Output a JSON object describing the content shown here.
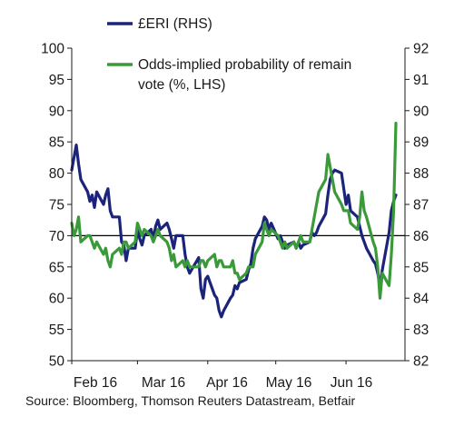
{
  "chart_data": {
    "type": "line",
    "x_ticks": [
      "Feb 16",
      "Mar 16",
      "Apr 16",
      "May 16",
      "Jun 16"
    ],
    "y_left": {
      "min": 50,
      "max": 100,
      "ticks": [
        "50",
        "55",
        "60",
        "65",
        "70",
        "75",
        "80",
        "85",
        "90",
        "95",
        "100"
      ]
    },
    "y_right": {
      "min": 82,
      "max": 92,
      "ticks": [
        "82",
        "83",
        "84",
        "85",
        "86",
        "87",
        "88",
        "89",
        "90",
        "91",
        "92"
      ]
    },
    "reference_line": {
      "axis": "right",
      "value": 86
    },
    "legend": [
      {
        "label": "£ERI (RHS)",
        "color": "#1b237a"
      },
      {
        "label": "Odds-implied probability of remain",
        "label_line2": "vote (%, LHS)",
        "color": "#3a9a3a"
      }
    ],
    "series": [
      {
        "name": "£ERI (RHS)",
        "axis": "right",
        "color": "#1b237a",
        "x": [
          "2016-02-01",
          "2016-02-02",
          "2016-02-03",
          "2016-02-04",
          "2016-02-05",
          "2016-02-08",
          "2016-02-09",
          "2016-02-10",
          "2016-02-11",
          "2016-02-12",
          "2016-02-15",
          "2016-02-16",
          "2016-02-17",
          "2016-02-18",
          "2016-02-19",
          "2016-02-22",
          "2016-02-23",
          "2016-02-24",
          "2016-02-25",
          "2016-02-26",
          "2016-02-29",
          "2016-03-01",
          "2016-03-02",
          "2016-03-03",
          "2016-03-04",
          "2016-03-07",
          "2016-03-08",
          "2016-03-09",
          "2016-03-10",
          "2016-03-11",
          "2016-03-14",
          "2016-03-15",
          "2016-03-16",
          "2016-03-17",
          "2016-03-18",
          "2016-03-21",
          "2016-03-22",
          "2016-03-23",
          "2016-03-24",
          "2016-03-28",
          "2016-03-29",
          "2016-03-30",
          "2016-03-31",
          "2016-04-01",
          "2016-04-04",
          "2016-04-05",
          "2016-04-06",
          "2016-04-07",
          "2016-04-08",
          "2016-04-11",
          "2016-04-12",
          "2016-04-13",
          "2016-04-14",
          "2016-04-15",
          "2016-04-18",
          "2016-04-19",
          "2016-04-20",
          "2016-04-21",
          "2016-04-22",
          "2016-04-25",
          "2016-04-26",
          "2016-04-27",
          "2016-04-28",
          "2016-04-29",
          "2016-05-02",
          "2016-05-03",
          "2016-05-04",
          "2016-05-05",
          "2016-05-06",
          "2016-05-09",
          "2016-05-10",
          "2016-05-11",
          "2016-05-12",
          "2016-05-13",
          "2016-05-16",
          "2016-05-17",
          "2016-05-18",
          "2016-05-19",
          "2016-05-20",
          "2016-05-23",
          "2016-05-24",
          "2016-05-25",
          "2016-05-26",
          "2016-05-27",
          "2016-05-30",
          "2016-05-31",
          "2016-06-01",
          "2016-06-02",
          "2016-06-03",
          "2016-06-06",
          "2016-06-07",
          "2016-06-08",
          "2016-06-09",
          "2016-06-10",
          "2016-06-13",
          "2016-06-14",
          "2016-06-15",
          "2016-06-16",
          "2016-06-17",
          "2016-06-20",
          "2016-06-21",
          "2016-06-22",
          "2016-06-23"
        ],
        "y": [
          88.1,
          88.5,
          88.9,
          88.3,
          87.8,
          87.4,
          87.1,
          87.3,
          86.9,
          87.4,
          87.0,
          87.3,
          87.5,
          86.8,
          86.6,
          86.6,
          85.8,
          85.7,
          85.2,
          85.6,
          85.6,
          86.2,
          85.9,
          85.7,
          86.0,
          86.2,
          85.9,
          86.3,
          86.5,
          86.2,
          86.4,
          86.2,
          85.9,
          85.6,
          86.0,
          86.0,
          85.4,
          85.0,
          84.8,
          85.3,
          84.3,
          84.0,
          84.6,
          84.7,
          84.1,
          84.0,
          83.6,
          83.4,
          83.6,
          84.0,
          84.1,
          84.4,
          84.3,
          84.5,
          84.6,
          84.9,
          85.1,
          85.6,
          85.9,
          86.3,
          86.6,
          86.5,
          86.2,
          86.4,
          85.9,
          86.0,
          85.8,
          85.6,
          85.7,
          85.8,
          85.6,
          85.8,
          85.6,
          85.7,
          85.8,
          86.1,
          86.0,
          86.1,
          86.3,
          86.7,
          87.3,
          87.8,
          88.0,
          88.1,
          88.0,
          87.5,
          87.0,
          87.3,
          86.8,
          86.6,
          86.3,
          86.0,
          85.8,
          85.6,
          85.2,
          85.1,
          84.8,
          84.4,
          84.9,
          86.1,
          86.8,
          87.1,
          87.3
        ]
      },
      {
        "name": "Odds-implied probability of remain vote (%, LHS)",
        "axis": "left",
        "color": "#3a9a3a",
        "x": [
          "2016-02-01",
          "2016-02-02",
          "2016-02-03",
          "2016-02-04",
          "2016-02-05",
          "2016-02-08",
          "2016-02-09",
          "2016-02-10",
          "2016-02-11",
          "2016-02-12",
          "2016-02-15",
          "2016-02-16",
          "2016-02-17",
          "2016-02-18",
          "2016-02-19",
          "2016-02-22",
          "2016-02-23",
          "2016-02-24",
          "2016-02-25",
          "2016-02-26",
          "2016-02-29",
          "2016-03-01",
          "2016-03-02",
          "2016-03-03",
          "2016-03-04",
          "2016-03-07",
          "2016-03-08",
          "2016-03-09",
          "2016-03-10",
          "2016-03-11",
          "2016-03-14",
          "2016-03-15",
          "2016-03-16",
          "2016-03-17",
          "2016-03-18",
          "2016-03-21",
          "2016-03-22",
          "2016-03-23",
          "2016-03-24",
          "2016-03-28",
          "2016-03-29",
          "2016-03-30",
          "2016-03-31",
          "2016-04-01",
          "2016-04-04",
          "2016-04-05",
          "2016-04-06",
          "2016-04-07",
          "2016-04-08",
          "2016-04-11",
          "2016-04-12",
          "2016-04-13",
          "2016-04-14",
          "2016-04-15",
          "2016-04-18",
          "2016-04-19",
          "2016-04-20",
          "2016-04-21",
          "2016-04-22",
          "2016-04-25",
          "2016-04-26",
          "2016-04-27",
          "2016-04-28",
          "2016-04-29",
          "2016-05-02",
          "2016-05-03",
          "2016-05-04",
          "2016-05-05",
          "2016-05-06",
          "2016-05-09",
          "2016-05-10",
          "2016-05-11",
          "2016-05-12",
          "2016-05-13",
          "2016-05-16",
          "2016-05-17",
          "2016-05-18",
          "2016-05-19",
          "2016-05-20",
          "2016-05-23",
          "2016-05-24",
          "2016-05-25",
          "2016-05-26",
          "2016-05-27",
          "2016-05-30",
          "2016-05-31",
          "2016-06-01",
          "2016-06-02",
          "2016-06-03",
          "2016-06-06",
          "2016-06-07",
          "2016-06-08",
          "2016-06-09",
          "2016-06-10",
          "2016-06-13",
          "2016-06-14",
          "2016-06-15",
          "2016-06-16",
          "2016-06-17",
          "2016-06-20",
          "2016-06-21",
          "2016-06-22",
          "2016-06-23"
        ],
        "y": [
          72,
          70,
          71,
          73,
          69,
          70,
          70,
          69,
          68,
          69,
          67,
          68,
          66,
          65,
          67,
          68,
          67,
          69,
          69,
          68,
          69,
          72,
          71,
          70,
          71,
          70,
          69,
          70,
          71,
          70,
          69,
          68,
          66,
          67,
          65,
          66,
          65,
          66,
          65,
          65,
          66,
          66,
          65,
          66,
          67,
          65,
          66,
          66,
          65,
          65,
          66,
          64,
          64,
          63,
          64,
          65,
          65,
          65,
          67,
          69,
          72,
          71,
          70,
          71,
          70,
          69,
          68,
          69,
          68,
          69,
          68,
          69,
          70,
          69,
          69,
          71,
          73,
          75,
          77,
          79,
          83,
          81,
          79,
          77,
          75,
          74,
          74,
          74,
          72,
          71,
          73,
          77,
          74,
          73,
          69,
          68,
          65,
          60,
          64,
          62,
          67,
          74,
          88
        ]
      }
    ],
    "source": "Source: Bloomberg, Thomson Reuters Datastream, Betfair"
  }
}
